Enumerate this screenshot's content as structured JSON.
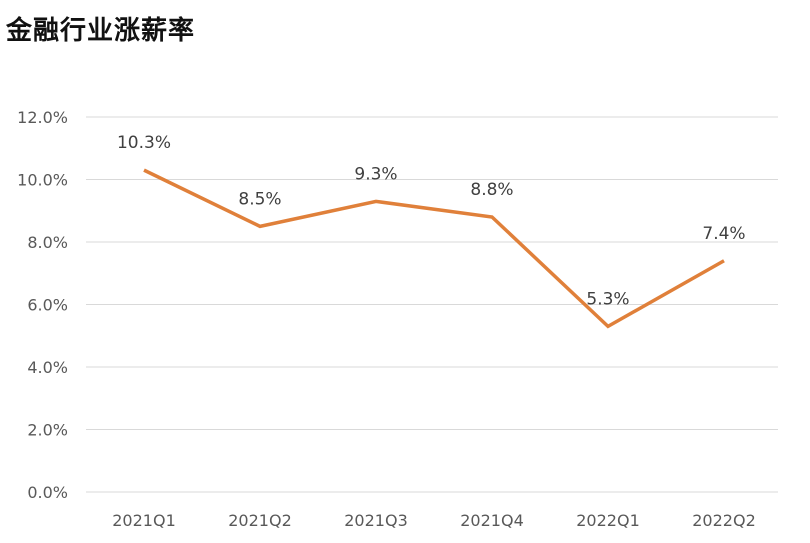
{
  "chart_data": {
    "type": "line",
    "title": "金融行业涨薪率",
    "categories": [
      "2021Q1",
      "2021Q2",
      "2021Q3",
      "2021Q4",
      "2022Q1",
      "2022Q2"
    ],
    "series": [
      {
        "values": [
          10.3,
          8.5,
          9.3,
          8.8,
          5.3,
          7.4
        ],
        "color": "#e0803a",
        "data_labels": [
          "10.3%",
          "8.5%",
          "9.3%",
          "8.8%",
          "5.3%",
          "7.4%"
        ]
      }
    ],
    "ylim": [
      0,
      12
    ],
    "yticks": [
      0,
      2,
      4,
      6,
      8,
      10,
      12
    ],
    "ytick_labels": [
      "0.0%",
      "2.0%",
      "4.0%",
      "6.0%",
      "8.0%",
      "10.0%",
      "12.0%"
    ],
    "grid": true,
    "grid_color": "#d9d9d9",
    "legend": "none"
  }
}
